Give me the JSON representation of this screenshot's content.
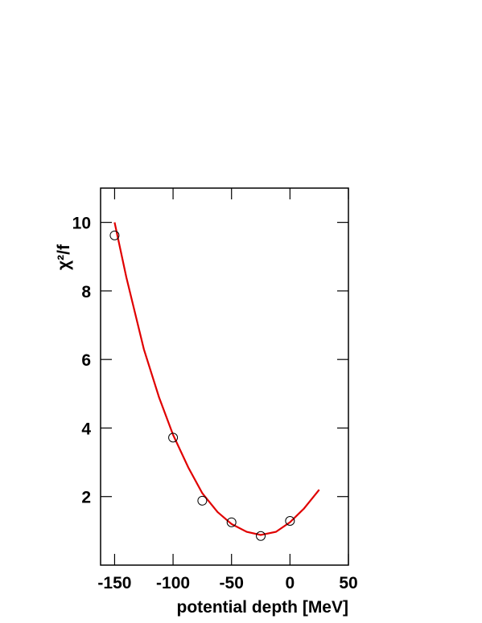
{
  "chart_data": {
    "type": "scatter",
    "x_label": "potential depth [MeV]",
    "y_label": "χ²/f",
    "xlim": [
      -162,
      50
    ],
    "xticks": [
      -150,
      -100,
      -50,
      0,
      50
    ],
    "ylim": [
      0,
      11
    ],
    "yticks": [
      2,
      4,
      6,
      8,
      10
    ],
    "points": {
      "color": "#000000",
      "x": [
        -150,
        -100,
        -75,
        -50,
        -25,
        0
      ],
      "y": [
        9.62,
        3.72,
        1.88,
        1.25,
        0.85,
        1.29
      ]
    },
    "curve": {
      "color": "#e00000",
      "x": [
        -150,
        -140,
        -125,
        -112,
        -100,
        -87,
        -75,
        -62,
        -50,
        -37,
        -25,
        -12,
        0,
        12,
        25
      ],
      "y": [
        10,
        8.4,
        6.3,
        4.9,
        3.8,
        2.85,
        2.1,
        1.55,
        1.2,
        0.97,
        0.88,
        0.97,
        1.25,
        1.65,
        2.2
      ]
    }
  }
}
